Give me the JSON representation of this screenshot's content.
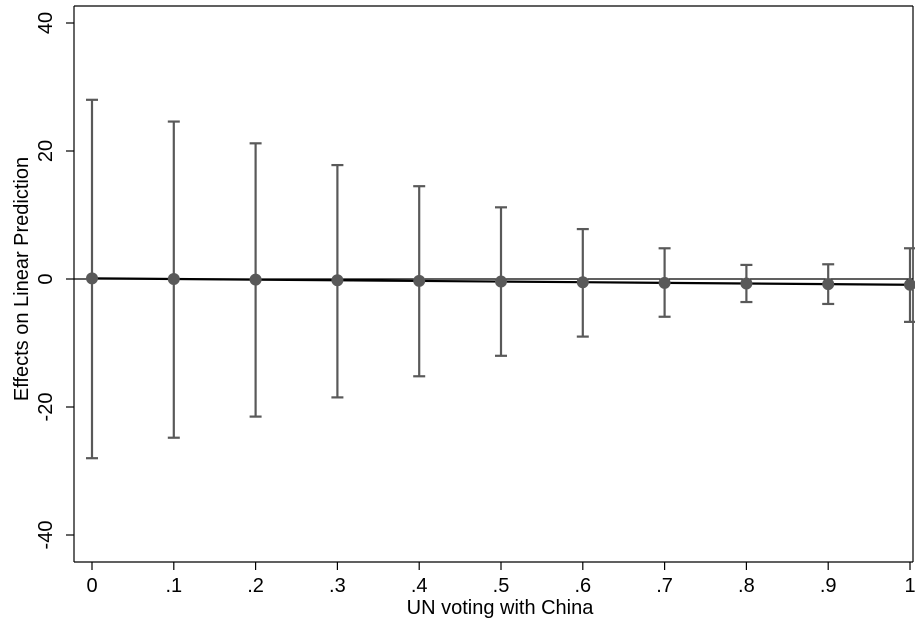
{
  "chart_data": {
    "type": "line",
    "title": "",
    "xlabel": "UN voting with China",
    "ylabel": "Effects on Linear Prediction",
    "xlim": [
      0,
      1
    ],
    "ylim": [
      -40,
      40
    ],
    "x_ticks": [
      {
        "value": 0,
        "label": "0"
      },
      {
        "value": 0.1,
        "label": ".1"
      },
      {
        "value": 0.2,
        "label": ".2"
      },
      {
        "value": 0.3,
        "label": ".3"
      },
      {
        "value": 0.4,
        "label": ".4"
      },
      {
        "value": 0.5,
        "label": ".5"
      },
      {
        "value": 0.6,
        "label": ".6"
      },
      {
        "value": 0.7,
        "label": ".7"
      },
      {
        "value": 0.8,
        "label": ".8"
      },
      {
        "value": 0.9,
        "label": ".9"
      },
      {
        "value": 1,
        "label": "1"
      }
    ],
    "y_ticks": [
      {
        "value": -40,
        "label": "-40"
      },
      {
        "value": -20,
        "label": "-20"
      },
      {
        "value": 0,
        "label": "0"
      },
      {
        "value": 20,
        "label": "20"
      },
      {
        "value": 40,
        "label": "40"
      }
    ],
    "reference_line": 0,
    "grid": false,
    "series": [
      {
        "x": [
          0,
          0.1,
          0.2,
          0.3,
          0.4,
          0.5,
          0.6,
          0.7,
          0.8,
          0.9,
          1
        ],
        "y": [
          0.1,
          0.0,
          -0.1,
          -0.2,
          -0.3,
          -0.4,
          -0.5,
          -0.6,
          -0.7,
          -0.8,
          -0.9
        ],
        "ci_lower": [
          -28.0,
          -24.8,
          -21.5,
          -18.5,
          -15.2,
          -12.0,
          -9.0,
          -5.9,
          -3.6,
          -3.9,
          -6.7
        ],
        "ci_upper": [
          28.0,
          24.6,
          21.2,
          17.8,
          14.5,
          11.2,
          7.8,
          4.8,
          2.2,
          2.3,
          4.8
        ]
      }
    ],
    "colors": {
      "line": "#000000",
      "marker": "#595959",
      "errorbar": "#595959",
      "reference": "#000000"
    }
  }
}
